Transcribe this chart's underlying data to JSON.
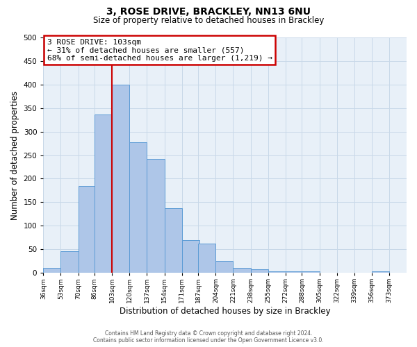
{
  "title": "3, ROSE DRIVE, BRACKLEY, NN13 6NU",
  "subtitle": "Size of property relative to detached houses in Brackley",
  "xlabel": "Distribution of detached houses by size in Brackley",
  "ylabel": "Number of detached properties",
  "bin_labels": [
    "36sqm",
    "53sqm",
    "70sqm",
    "86sqm",
    "103sqm",
    "120sqm",
    "137sqm",
    "154sqm",
    "171sqm",
    "187sqm",
    "204sqm",
    "221sqm",
    "238sqm",
    "255sqm",
    "272sqm",
    "288sqm",
    "305sqm",
    "322sqm",
    "339sqm",
    "356sqm",
    "373sqm"
  ],
  "bin_left_edges": [
    36,
    53,
    70,
    86,
    103,
    120,
    137,
    154,
    171,
    187,
    204,
    221,
    238,
    255,
    272,
    288,
    305,
    322,
    339,
    356,
    373
  ],
  "bin_width": 17,
  "counts": [
    10,
    46,
    185,
    337,
    400,
    277,
    242,
    137,
    70,
    62,
    25,
    10,
    7,
    3,
    3,
    3,
    0,
    0,
    0,
    3,
    0
  ],
  "bar_color": "#aec6e8",
  "bar_edge_color": "#5b9bd5",
  "highlight_x": 103,
  "annotation_title": "3 ROSE DRIVE: 103sqm",
  "annotation_line1": "← 31% of detached houses are smaller (557)",
  "annotation_line2": "68% of semi-detached houses are larger (1,219) →",
  "annotation_box_color": "#ffffff",
  "annotation_box_edge_color": "#cc0000",
  "vline_color": "#cc0000",
  "ylim": [
    0,
    500
  ],
  "yticks": [
    0,
    50,
    100,
    150,
    200,
    250,
    300,
    350,
    400,
    450,
    500
  ],
  "xmin": 36,
  "xmax": 390,
  "footer_line1": "Contains HM Land Registry data © Crown copyright and database right 2024.",
  "footer_line2": "Contains public sector information licensed under the Open Government Licence v3.0.",
  "background_color": "#ffffff",
  "plot_bg_color": "#e8f0f8",
  "grid_color": "#c8d8e8"
}
